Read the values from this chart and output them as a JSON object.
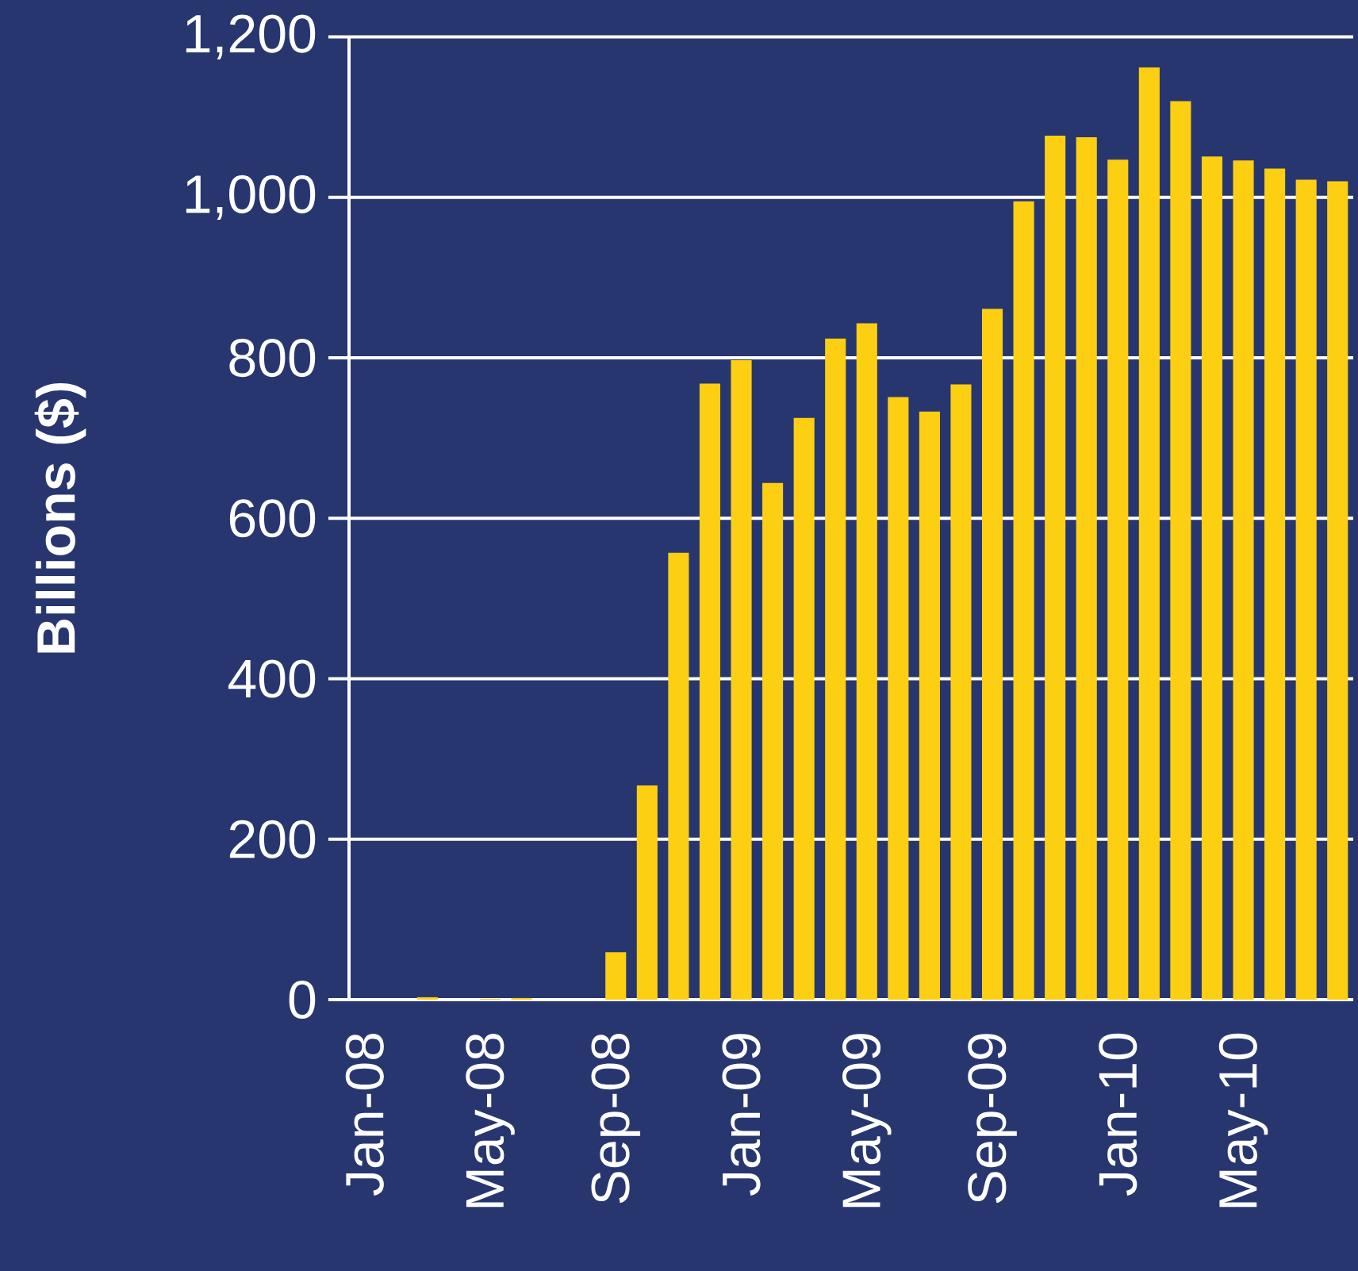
{
  "chart_data": {
    "type": "bar",
    "ylabel": "Billions ($)",
    "categories": [
      "Jan-08",
      null,
      null,
      null,
      "May-08",
      null,
      null,
      null,
      "Sep-08",
      null,
      null,
      null,
      "Jan-09",
      null,
      null,
      null,
      "May-09",
      null,
      null,
      null,
      "Sep-09",
      null,
      null,
      null,
      "Jan-10",
      null,
      null,
      null,
      "May-10",
      null,
      null,
      null
    ],
    "values": [
      0,
      0,
      3,
      0,
      1,
      2,
      0,
      0,
      59,
      267,
      557,
      768,
      797,
      644,
      725,
      824,
      843,
      751,
      733,
      767,
      861,
      995,
      1077,
      1075,
      1047,
      1162,
      1120,
      1051,
      1046,
      1036,
      1022,
      1020
    ],
    "color": "#fccf13",
    "ylim": [
      0,
      1200
    ],
    "yticks": [
      0,
      200,
      400,
      600,
      800,
      {
        "value": 1000,
        "label": "1,000"
      },
      {
        "value": 1200,
        "label": "1,200"
      }
    ],
    "grid": "y"
  }
}
